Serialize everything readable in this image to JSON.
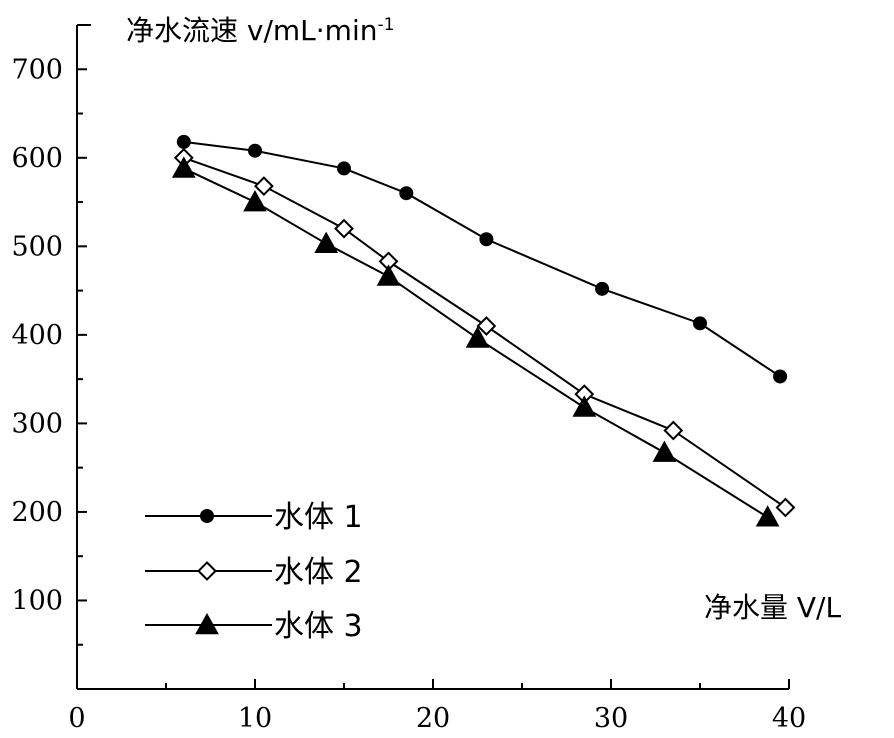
{
  "chart_data": {
    "type": "line",
    "ylabel": "净水流速 v/mL·min",
    "ylabel_sup": "-1",
    "xlabel": "净水量 V/L",
    "xlim": [
      0,
      40
    ],
    "ylim": [
      0,
      750
    ],
    "xticks": [
      0,
      10,
      20,
      30,
      40
    ],
    "yticks": [
      100,
      200,
      300,
      400,
      500,
      600,
      700
    ],
    "grid": false,
    "legend_position": "bottom-left",
    "series": [
      {
        "name": "水体 1",
        "marker": "circle",
        "x": [
          6,
          10,
          15,
          18.5,
          23,
          29.5,
          35,
          39.5
        ],
        "y": [
          618,
          608,
          588,
          560,
          508,
          452,
          413,
          353
        ]
      },
      {
        "name": "水体 2",
        "marker": "diamond-open",
        "x": [
          6,
          10.5,
          15,
          17.5,
          23,
          28.5,
          33.5,
          39.8
        ],
        "y": [
          600,
          568,
          520,
          483,
          410,
          333,
          292,
          205
        ]
      },
      {
        "name": "水体 3",
        "marker": "triangle",
        "x": [
          6,
          10,
          14,
          17.5,
          22.5,
          28.5,
          33,
          38.8
        ],
        "y": [
          588,
          550,
          503,
          466,
          396,
          318,
          267,
          194
        ]
      }
    ]
  }
}
